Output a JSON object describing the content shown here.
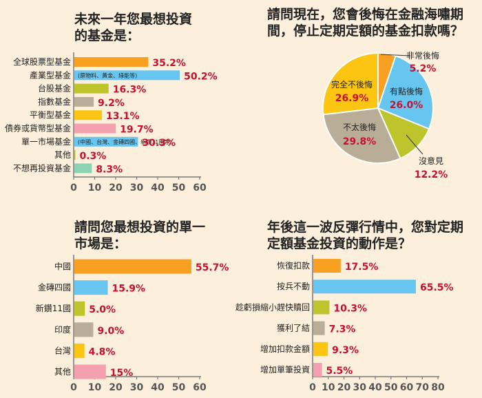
{
  "colors": {
    "orange": "#f7a021",
    "blue": "#66c6f0",
    "olive": "#bdc42c",
    "taupe": "#b9ad98",
    "yellow": "#fcc511",
    "pink": "#f4a0ae",
    "mint": "#8ed2b6",
    "value": "#c8102e",
    "axis": "#777777"
  },
  "chart_data": [
    {
      "type": "bar",
      "title": [
        "未來一年您最想投資",
        "的基金是："
      ],
      "categories": [
        "全球股票型基金",
        "產業型基金",
        "台股基金",
        "指數基金",
        "平衡型基金",
        "債券或貨幣型基金",
        "單一市場基金",
        "其他",
        "不想再投資基金"
      ],
      "values": [
        35.2,
        50.2,
        16.3,
        9.2,
        13.1,
        19.7,
        30.3,
        0.3,
        8.3
      ],
      "value_labels": [
        "35.2%",
        "50.2%",
        "16.3%",
        "9.2%",
        "13.1%",
        "19.7%",
        "30.3%",
        "0.3%",
        "8.3%"
      ],
      "colors": [
        "#f7a021",
        "#66c6f0",
        "#bdc42c",
        "#b9ad98",
        "#fcc511",
        "#f4a0ae",
        "#66c6f0",
        "#bdc42c",
        "#8ed2b6"
      ],
      "notes": [
        "",
        "(原物料、黃金、綠能等)",
        "",
        "",
        "",
        "",
        "(中國、台灣、金磚四國、新鑽11國等)",
        "",
        ""
      ],
      "xlim": [
        0,
        60
      ],
      "xticks": [
        "0",
        "10",
        "20",
        "30",
        "40",
        "50",
        "60"
      ]
    },
    {
      "type": "pie",
      "title": [
        "請問現在，您會後悔在金融海嘯期",
        "間，停止定期定額的基金扣款嗎？"
      ],
      "labels": [
        "非常後悔",
        "有點後悔",
        "沒意見",
        "不太後悔",
        "完全不後悔"
      ],
      "values": [
        5.2,
        26.0,
        12.2,
        29.8,
        26.9
      ],
      "value_labels": [
        "5.2%",
        "26.0%",
        "12.2%",
        "29.8%",
        "26.9%"
      ],
      "colors": [
        "#f7a021",
        "#66c6f0",
        "#bdc42c",
        "#b9ad98",
        "#fcc511"
      ]
    },
    {
      "type": "bar",
      "title": [
        "請問您最想投資的單一",
        "市場是："
      ],
      "categories": [
        "中國",
        "金磚四國",
        "新鑽11國",
        "印度",
        "台灣",
        "其他"
      ],
      "values": [
        55.7,
        15.9,
        5.0,
        9.0,
        4.8,
        15
      ],
      "value_labels": [
        "55.7%",
        "15.9%",
        "5.0%",
        "9.0%",
        "4.8%",
        "15%"
      ],
      "colors": [
        "#f7a021",
        "#66c6f0",
        "#bdc42c",
        "#b9ad98",
        "#fcc511",
        "#f4a0ae"
      ],
      "xlim": [
        0,
        60
      ],
      "xticks": [
        "0",
        "10",
        "20",
        "30",
        "40",
        "50",
        "60"
      ]
    },
    {
      "type": "bar",
      "title": [
        "年後這一波反彈行情中，您對定期",
        "定額基金投資的動作是？"
      ],
      "categories": [
        "恢復扣款",
        "按兵不動",
        "趁虧損縮小趕快贖回",
        "獲利了結",
        "增加扣款金額",
        "增加單筆投資"
      ],
      "values": [
        17.5,
        65.5,
        10.3,
        7.3,
        9.3,
        5.5
      ],
      "value_labels": [
        "17.5%",
        "65.5%",
        "10.3%",
        "7.3%",
        "9.3%",
        "5.5%"
      ],
      "colors": [
        "#f7a021",
        "#66c6f0",
        "#bdc42c",
        "#b9ad98",
        "#fcc511",
        "#f4a0ae"
      ],
      "xlim": [
        0,
        80
      ],
      "xticks": [
        "0",
        "10",
        "20",
        "30",
        "40",
        "50",
        "60",
        "70",
        "80"
      ]
    }
  ]
}
